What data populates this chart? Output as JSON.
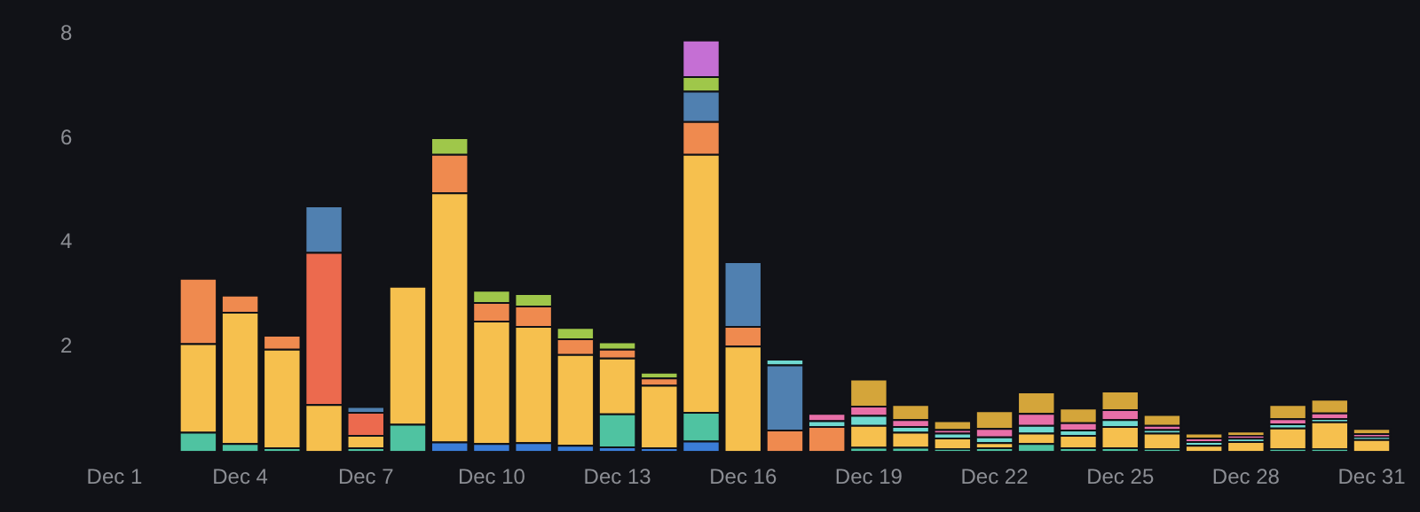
{
  "chart_data": {
    "type": "bar",
    "stacked": true,
    "categories": [
      "Dec 1",
      null,
      null,
      "Dec 4",
      null,
      null,
      "Dec 7",
      null,
      null,
      "Dec 10",
      null,
      null,
      "Dec 13",
      null,
      null,
      "Dec 16",
      null,
      null,
      "Dec 19",
      null,
      null,
      "Dec 22",
      null,
      null,
      "Dec 25",
      null,
      null,
      "Dec 28",
      null,
      null,
      "Dec 31"
    ],
    "ylim": [
      0,
      8
    ],
    "yticks": [
      2,
      4,
      6,
      8
    ],
    "series": [
      {
        "color": "#3b7dd8",
        "values": [
          null,
          null,
          null,
          null,
          null,
          null,
          null,
          null,
          0.18,
          0.15,
          0.17,
          0.12,
          0.09,
          0.07,
          0.2,
          null,
          null,
          null,
          null,
          null,
          null,
          null,
          null,
          null,
          null,
          null,
          null,
          null,
          null,
          null,
          null
        ]
      },
      {
        "color": "#4fc3a1",
        "values": [
          null,
          null,
          0.37,
          0.15,
          0.07,
          null,
          0.07,
          0.52,
          null,
          null,
          null,
          null,
          0.63,
          null,
          0.55,
          null,
          null,
          null,
          0.08,
          0.08,
          0.05,
          0.07,
          0.15,
          0.07,
          0.07,
          0.05,
          null,
          null,
          0.05,
          0.05,
          null
        ]
      },
      {
        "color": "#f6c04e",
        "values": [
          null,
          null,
          1.7,
          2.52,
          1.89,
          0.9,
          0.24,
          2.65,
          4.78,
          2.35,
          2.23,
          1.74,
          1.07,
          1.2,
          4.95,
          2.02,
          null,
          null,
          0.42,
          0.29,
          0.21,
          0.1,
          0.2,
          0.24,
          0.41,
          0.3,
          0.12,
          0.19,
          0.4,
          0.52,
          0.23
        ]
      },
      {
        "color": "#ef8a4f",
        "values": [
          null,
          null,
          1.25,
          0.33,
          0.27,
          null,
          null,
          null,
          0.74,
          0.36,
          0.39,
          0.3,
          0.17,
          0.14,
          0.63,
          0.38,
          0.41,
          0.48,
          null,
          null,
          null,
          null,
          null,
          null,
          null,
          null,
          null,
          null,
          null,
          null,
          null
        ]
      },
      {
        "color": "#ec6a4e",
        "values": [
          null,
          null,
          null,
          null,
          null,
          2.92,
          0.44,
          null,
          null,
          null,
          null,
          null,
          null,
          null,
          null,
          null,
          null,
          null,
          null,
          null,
          null,
          null,
          null,
          null,
          null,
          null,
          null,
          null,
          null,
          null,
          null
        ]
      },
      {
        "color": "#5080b0",
        "values": [
          null,
          null,
          null,
          null,
          null,
          0.89,
          0.11,
          null,
          null,
          null,
          null,
          null,
          null,
          null,
          0.58,
          1.24,
          1.25,
          null,
          null,
          null,
          null,
          null,
          null,
          null,
          null,
          null,
          null,
          null,
          null,
          null,
          null
        ]
      },
      {
        "color": "#9fc74a",
        "values": [
          null,
          null,
          null,
          null,
          null,
          null,
          null,
          null,
          0.32,
          0.23,
          0.24,
          0.22,
          0.14,
          0.11,
          0.28,
          null,
          null,
          null,
          null,
          null,
          null,
          null,
          null,
          null,
          null,
          null,
          null,
          null,
          null,
          null,
          null
        ]
      },
      {
        "color": "#c56fd4",
        "values": [
          null,
          null,
          null,
          null,
          null,
          null,
          null,
          null,
          null,
          null,
          null,
          null,
          null,
          null,
          0.7,
          null,
          null,
          null,
          null,
          null,
          null,
          null,
          null,
          null,
          null,
          null,
          null,
          null,
          null,
          null,
          null
        ]
      },
      {
        "color": "#6fd9d0",
        "values": [
          null,
          null,
          null,
          null,
          null,
          null,
          null,
          null,
          null,
          null,
          null,
          null,
          null,
          null,
          null,
          null,
          0.11,
          0.11,
          0.19,
          0.11,
          0.09,
          0.11,
          0.15,
          0.1,
          0.13,
          0.07,
          0.07,
          0.06,
          0.08,
          0.06,
          0.05
        ]
      },
      {
        "color": "#e86fa8",
        "values": [
          null,
          null,
          null,
          null,
          null,
          null,
          null,
          null,
          null,
          null,
          null,
          null,
          null,
          null,
          null,
          null,
          null,
          0.14,
          0.18,
          0.13,
          0.07,
          0.16,
          0.23,
          0.14,
          0.19,
          0.08,
          0.07,
          0.06,
          0.1,
          0.11,
          0.06
        ]
      },
      {
        "color": "#d4a53a",
        "values": [
          null,
          null,
          null,
          null,
          null,
          null,
          null,
          null,
          null,
          null,
          null,
          null,
          null,
          null,
          null,
          null,
          null,
          null,
          0.52,
          0.29,
          0.17,
          0.34,
          0.41,
          0.28,
          0.36,
          0.21,
          0.09,
          0.08,
          0.27,
          0.26,
          0.1
        ]
      }
    ]
  }
}
